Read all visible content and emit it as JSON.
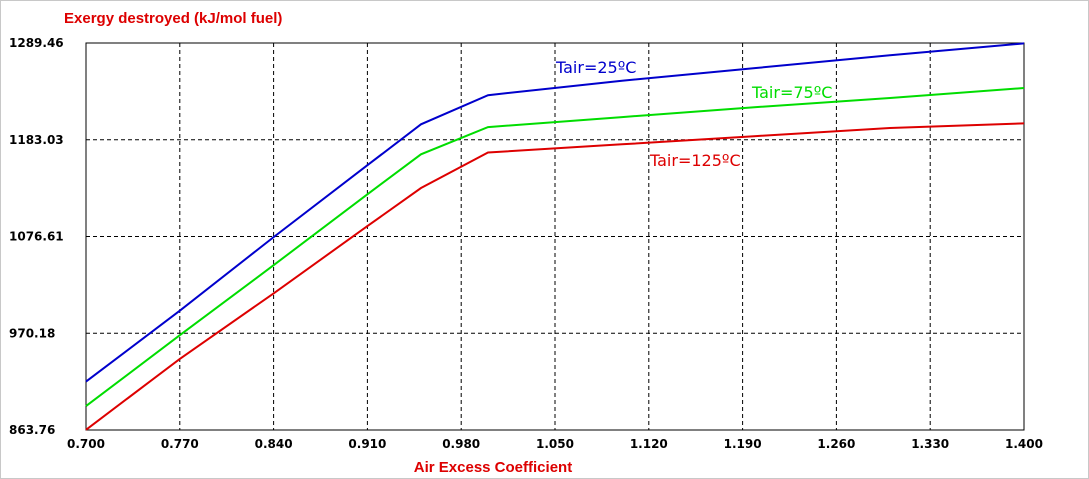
{
  "chart_data": {
    "type": "line",
    "title": "",
    "ylabel": "Exergy destroyed (kJ/mol fuel)",
    "xlabel": "Air Excess Coefficient",
    "xlim": [
      0.7,
      1.4
    ],
    "ylim": [
      863.76,
      1289.46
    ],
    "x_ticks": [
      "0.700",
      "0.770",
      "0.840",
      "0.910",
      "0.980",
      "1.050",
      "1.120",
      "1.190",
      "1.260",
      "1.330",
      "1.400"
    ],
    "y_ticks": [
      "863.76",
      "970.18",
      "1076.61",
      "1183.03",
      "1289.46"
    ],
    "grid": true,
    "series": [
      {
        "name": "Tair=25ºC",
        "color": "#0000cc",
        "x": [
          0.7,
          0.77,
          0.84,
          0.91,
          0.95,
          1.0,
          1.1,
          1.2,
          1.3,
          1.4
        ],
        "values": [
          917,
          995,
          1076,
          1155,
          1200,
          1232,
          1248,
          1262,
          1276,
          1289
        ]
      },
      {
        "name": "Tair=75ºC",
        "color": "#00dd00",
        "x": [
          0.7,
          0.77,
          0.84,
          0.91,
          0.95,
          1.0,
          1.1,
          1.2,
          1.3,
          1.4
        ],
        "values": [
          890,
          968,
          1045,
          1123,
          1167,
          1197,
          1208,
          1219,
          1229,
          1240
        ]
      },
      {
        "name": "Tair=125ºC",
        "color": "#dd0000",
        "x": [
          0.7,
          0.77,
          0.84,
          0.91,
          0.95,
          1.0,
          1.1,
          1.2,
          1.3,
          1.4
        ],
        "values": [
          864,
          942,
          1014,
          1088,
          1130,
          1169,
          1178,
          1187,
          1196,
          1201
        ]
      }
    ]
  }
}
